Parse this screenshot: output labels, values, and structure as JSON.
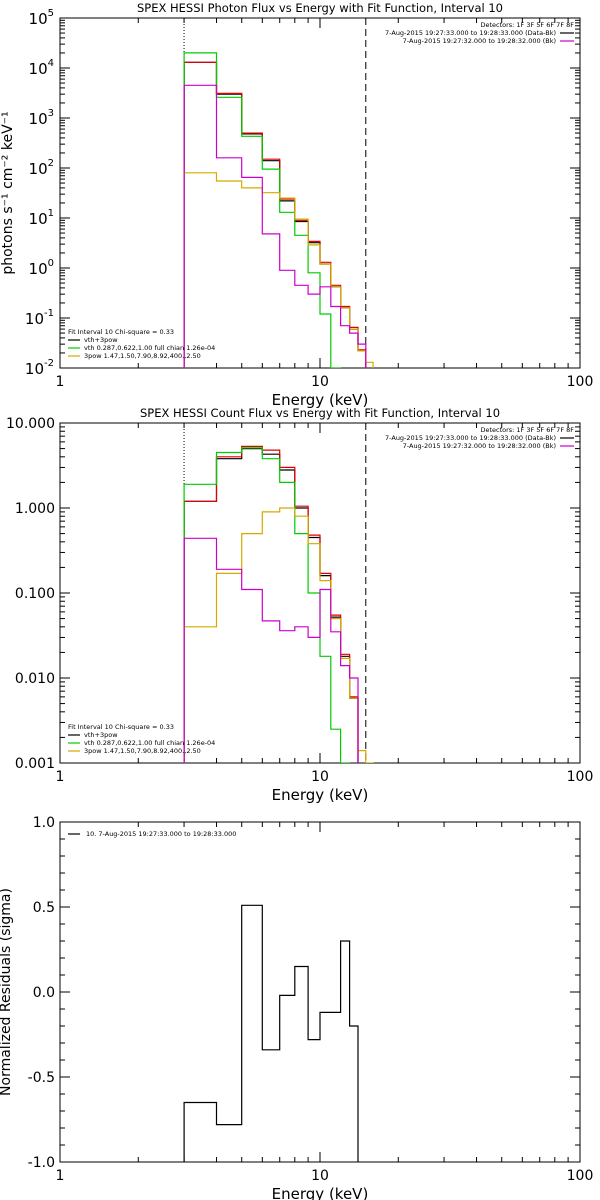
{
  "chart_data": [
    {
      "type": "line",
      "title": "SPEX HESSI Photon Flux vs Energy with Fit Function, Interval 10",
      "xlabel": "Energy (keV)",
      "ylabel": "photons s⁻¹ cm⁻² keV⁻¹",
      "xscale": "log",
      "yscale": "log",
      "xlim": [
        1,
        100
      ],
      "ylim": [
        0.01,
        100000
      ],
      "x_ticks": [
        {
          "v": 1,
          "label": "1"
        },
        {
          "v": 10,
          "label": "10"
        },
        {
          "v": 100,
          "label": "100"
        }
      ],
      "y_ticks": [
        {
          "v": 0.01,
          "base": "10",
          "exp": "-2"
        },
        {
          "v": 0.1,
          "base": "10",
          "exp": "-1"
        },
        {
          "v": 1,
          "base": "10",
          "exp": "0"
        },
        {
          "v": 10,
          "base": "10",
          "exp": "1"
        },
        {
          "v": 100,
          "base": "10",
          "exp": "2"
        },
        {
          "v": 1000,
          "base": "10",
          "exp": "3"
        },
        {
          "v": 10000,
          "base": "10",
          "exp": "4"
        },
        {
          "v": 100000,
          "base": "10",
          "exp": "5"
        }
      ],
      "vlines": [
        {
          "x": 3,
          "style": "dotted"
        },
        {
          "x": 15,
          "style": "dashed"
        }
      ],
      "bin_edges": [
        3,
        4,
        5,
        6,
        7,
        8,
        9,
        10,
        11,
        12,
        13,
        14,
        15,
        16
      ],
      "info_lines": [
        "Detectors: 1F 3F 5F 6F 7F 8F",
        "7-Aug-2015 19:27:33.000 to 19:28:33.000 (Data-Bk)",
        "7-Aug-2015 19:27:32.000 to 19:28:32.000 (Bk)"
      ],
      "info_colors": [
        "",
        "#000000",
        "#cc00cc"
      ],
      "fit_header": "Fit Interval 10   Chi-square = 0.33",
      "series": [
        {
          "name": "vth+3pow",
          "color": "#000000",
          "values": [
            13000,
            3000,
            480,
            140,
            22,
            8.5,
            3.2,
            1.2,
            0.42,
            0.16,
            0.06,
            0.022,
            null
          ]
        },
        {
          "name": "",
          "color": "#e00000",
          "values": [
            13000,
            3100,
            500,
            150,
            24,
            9.0,
            3.4,
            1.3,
            0.45,
            0.17,
            0.065,
            0.023,
            null
          ]
        },
        {
          "name": "vth 0.287,0.622,1.00  full chian 1.26e-04",
          "color": "#00cc00",
          "values": [
            20000,
            2600,
            430,
            95,
            13,
            4.5,
            0.8,
            0.12,
            0.01,
            null,
            null,
            null,
            null
          ]
        },
        {
          "name": "3pow 1.47,1.50,7.90,8.92,400.,2.50",
          "color": "#d4aa00",
          "values": [
            80,
            55,
            40,
            32,
            25,
            9.5,
            2.9,
            1.2,
            0.42,
            0.16,
            0.06,
            0.022,
            0.013
          ]
        },
        {
          "name": "",
          "color": "#cc00cc",
          "values": [
            4500,
            160,
            65,
            4.8,
            0.9,
            0.45,
            0.3,
            0.42,
            0.17,
            0.07,
            0.05,
            0.03,
            null
          ]
        }
      ]
    },
    {
      "type": "line",
      "title": "SPEX HESSI Count Flux vs Energy with Fit Function, Interval 10",
      "xlabel": "Energy (keV)",
      "ylabel": "",
      "xscale": "log",
      "yscale": "log",
      "xlim": [
        1,
        100
      ],
      "ylim": [
        0.001,
        10
      ],
      "x_ticks": [
        {
          "v": 1,
          "label": "1"
        },
        {
          "v": 10,
          "label": "10"
        },
        {
          "v": 100,
          "label": "100"
        }
      ],
      "y_ticks": [
        {
          "v": 0.001,
          "label": "0.001"
        },
        {
          "v": 0.01,
          "label": "0.010"
        },
        {
          "v": 0.1,
          "label": "0.100"
        },
        {
          "v": 1,
          "label": "1.000"
        },
        {
          "v": 10,
          "label": "10.000"
        }
      ],
      "vlines": [
        {
          "x": 3,
          "style": "dotted"
        },
        {
          "x": 15,
          "style": "dashed"
        }
      ],
      "bin_edges": [
        3,
        4,
        5,
        6,
        7,
        8,
        9,
        10,
        11,
        12,
        13,
        14,
        15,
        16
      ],
      "info_lines": [
        "Detectors: 1F 3F 5F 6F 7F 8F",
        "7-Aug-2015 19:27:33.000 to 19:28:33.000 (Data-Bk)",
        "7-Aug-2015 19:27:32.000 to 19:28:32.000 (Bk)"
      ],
      "info_colors": [
        "",
        "#000000",
        "#cc00cc"
      ],
      "fit_header": "Fit Interval 10   Chi-square = 0.33",
      "series": [
        {
          "name": "vth+3pow",
          "color": "#000000",
          "values": [
            1.2,
            3.8,
            5.0,
            4.3,
            2.8,
            1.0,
            0.45,
            0.16,
            0.052,
            0.018,
            0.0058,
            null,
            null
          ]
        },
        {
          "name": "",
          "color": "#e00000",
          "values": [
            1.2,
            4.0,
            5.3,
            4.8,
            3.0,
            1.05,
            0.48,
            0.17,
            0.055,
            0.019,
            0.006,
            null,
            null
          ]
        },
        {
          "name": "vth 0.287,0.622,1.00  full chian 1.26e-04",
          "color": "#00cc00",
          "values": [
            1.9,
            4.5,
            5.1,
            3.8,
            2.0,
            0.5,
            0.1,
            0.018,
            0.0025,
            0.0008,
            null,
            null,
            null
          ]
        },
        {
          "name": "3pow 1.47,1.50,7.90,8.92,400.,2.50",
          "color": "#d4aa00",
          "values": [
            0.04,
            0.17,
            0.5,
            0.9,
            1.0,
            0.8,
            0.38,
            0.14,
            0.05,
            0.017,
            0.0058,
            0.0014,
            0.0008
          ]
        },
        {
          "name": "",
          "color": "#cc00cc",
          "values": [
            0.44,
            0.19,
            0.11,
            0.047,
            0.036,
            0.04,
            0.03,
            0.11,
            0.035,
            0.014,
            0.01,
            null,
            null
          ]
        }
      ]
    },
    {
      "type": "line",
      "title": "",
      "xlabel": "Energy (keV)",
      "ylabel": "Normalized Residuals (sigma)",
      "xscale": "log",
      "yscale": "linear",
      "xlim": [
        1,
        100
      ],
      "ylim": [
        -1.0,
        1.0
      ],
      "x_ticks": [
        {
          "v": 1,
          "label": "1"
        },
        {
          "v": 10,
          "label": "10"
        },
        {
          "v": 100,
          "label": "100"
        }
      ],
      "y_ticks": [
        {
          "v": -1.0,
          "label": "-1.0"
        },
        {
          "v": -0.5,
          "label": "-0.5"
        },
        {
          "v": 0.0,
          "label": "0.0"
        },
        {
          "v": 0.5,
          "label": "0.5"
        },
        {
          "v": 1.0,
          "label": "1.0"
        }
      ],
      "vlines": [],
      "bin_edges": [
        3,
        4,
        5,
        6,
        7,
        8,
        9,
        10,
        11,
        12,
        13,
        14,
        15
      ],
      "info_lines": [],
      "info_colors": [],
      "fit_header": "",
      "legend": [
        {
          "name": "10.  7-Aug-2015 19:27:33.000 to 19:28:33.000",
          "color": "#000000"
        }
      ],
      "series": [
        {
          "name": "10.  7-Aug-2015 19:27:33.000 to 19:28:33.000",
          "color": "#000000",
          "values": [
            -0.65,
            -0.78,
            0.51,
            -0.34,
            -0.02,
            0.15,
            -0.28,
            -0.12,
            -0.12,
            0.3,
            -0.2
          ],
          "start_y": -1.0
        }
      ]
    }
  ]
}
